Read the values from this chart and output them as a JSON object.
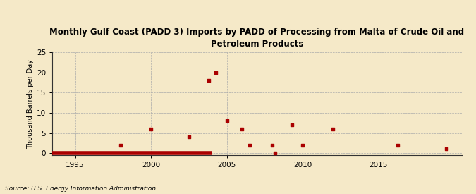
{
  "title": "Monthly Gulf Coast (PADD 3) Imports by PADD of Processing from Malta of Crude Oil and\nPetroleum Products",
  "ylabel": "Thousand Barrels per Day",
  "source": "Source: U.S. Energy Information Administration",
  "background_color": "#f5e9c8",
  "scatter_color": "#aa0000",
  "line_color": "#aa0000",
  "xlim": [
    1993.5,
    2020.5
  ],
  "ylim": [
    -0.5,
    25
  ],
  "yticks": [
    0,
    5,
    10,
    15,
    20,
    25
  ],
  "xticks": [
    1995,
    2000,
    2005,
    2010,
    2015
  ],
  "scatter_points": [
    [
      1998.0,
      2
    ],
    [
      2000.0,
      6
    ],
    [
      2002.5,
      4
    ],
    [
      2003.8,
      18
    ],
    [
      2004.3,
      20
    ],
    [
      2005.0,
      8
    ],
    [
      2006.0,
      6
    ],
    [
      2006.5,
      2
    ],
    [
      2008.0,
      2
    ],
    [
      2008.2,
      0
    ],
    [
      2009.3,
      7
    ],
    [
      2010.0,
      2
    ],
    [
      2012.0,
      6
    ],
    [
      2016.3,
      2
    ],
    [
      2019.5,
      1
    ]
  ],
  "line_x_start": 1993.5,
  "line_x_end": 2004.0,
  "line_y": 0
}
